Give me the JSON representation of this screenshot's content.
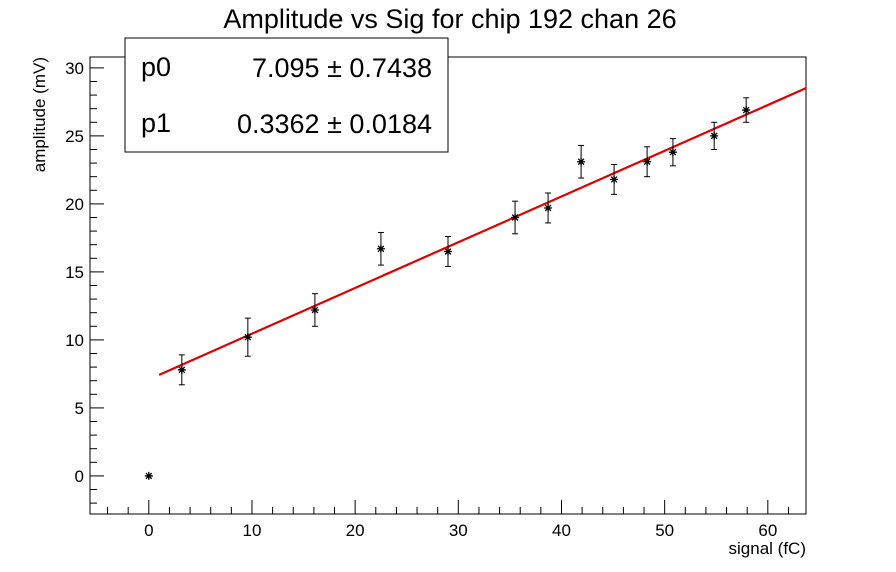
{
  "chart_data": {
    "type": "scatter",
    "title": "Amplitude vs Sig for chip 192 chan 26",
    "xlabel": "signal (fC)",
    "ylabel": "amplitude (mV)",
    "xlim": [
      -5.7,
      63.7
    ],
    "ylim": [
      -2.8,
      30.8
    ],
    "x_ticks": [
      0,
      10,
      20,
      30,
      40,
      50,
      60
    ],
    "y_ticks": [
      0,
      5,
      10,
      15,
      20,
      25,
      30
    ],
    "grid": false,
    "series": [
      {
        "marker": "star",
        "color": "#000000",
        "points": [
          {
            "x": 0.0,
            "y": 0.0,
            "err": 0.0
          },
          {
            "x": 3.2,
            "y": 7.8,
            "err": 1.1
          },
          {
            "x": 9.6,
            "y": 10.2,
            "err": 1.4
          },
          {
            "x": 16.1,
            "y": 12.2,
            "err": 1.2
          },
          {
            "x": 22.5,
            "y": 16.7,
            "err": 1.2
          },
          {
            "x": 29.0,
            "y": 16.5,
            "err": 1.1
          },
          {
            "x": 35.5,
            "y": 19.0,
            "err": 1.2
          },
          {
            "x": 38.7,
            "y": 19.7,
            "err": 1.1
          },
          {
            "x": 41.9,
            "y": 23.1,
            "err": 1.2
          },
          {
            "x": 45.1,
            "y": 21.8,
            "err": 1.1
          },
          {
            "x": 48.3,
            "y": 23.1,
            "err": 1.1
          },
          {
            "x": 50.8,
            "y": 23.8,
            "err": 1.0
          },
          {
            "x": 54.8,
            "y": 25.0,
            "err": 1.0
          },
          {
            "x": 57.9,
            "y": 26.9,
            "err": 0.9
          }
        ]
      }
    ],
    "fit": {
      "color": "#dd0000",
      "x_range": [
        1.0,
        63.7
      ],
      "p0": 7.095,
      "p1": 0.3362
    },
    "stats_box": {
      "position": "top-left",
      "rows": [
        {
          "name": "p0",
          "value": "7.095",
          "error": "0.7438"
        },
        {
          "name": "p1",
          "value": "0.3362",
          "error": "0.0184"
        }
      ]
    }
  }
}
